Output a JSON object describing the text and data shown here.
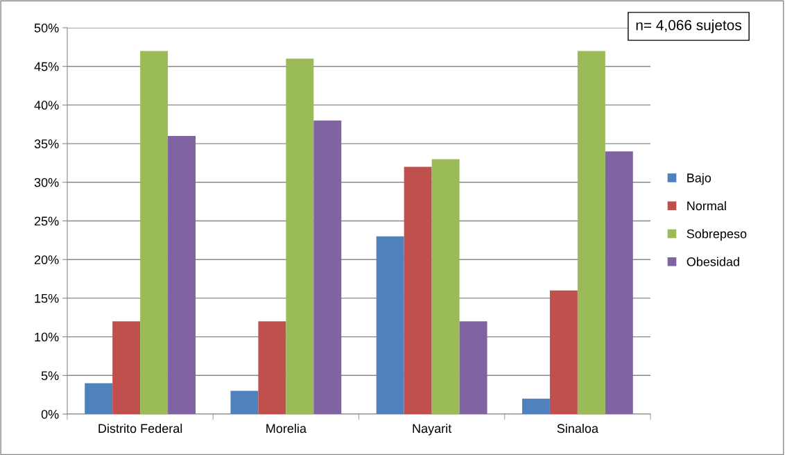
{
  "chart_data": {
    "type": "bar",
    "categories": [
      "Distrito Federal",
      "Morelia",
      "Nayarit",
      "Sinaloa"
    ],
    "series": [
      {
        "name": "Bajo",
        "color": "#4f81bd",
        "values": [
          4,
          3,
          23,
          2
        ]
      },
      {
        "name": "Normal",
        "color": "#c0504d",
        "values": [
          12,
          12,
          32,
          16
        ]
      },
      {
        "name": "Sobrepeso",
        "color": "#9bbb59",
        "values": [
          47,
          46,
          33,
          47
        ]
      },
      {
        "name": "Obesidad",
        "color": "#8064a2",
        "values": [
          36,
          38,
          12,
          34
        ]
      }
    ],
    "ylim": [
      0,
      50
    ],
    "yticks": [
      {
        "value": 0,
        "label": "0%"
      },
      {
        "value": 5,
        "label": "5%"
      },
      {
        "value": 10,
        "label": "10%"
      },
      {
        "value": 15,
        "label": "15%"
      },
      {
        "value": 20,
        "label": "20%"
      },
      {
        "value": 25,
        "label": "25%"
      },
      {
        "value": 30,
        "label": "30%"
      },
      {
        "value": 35,
        "label": "35%"
      },
      {
        "value": 40,
        "label": "40%"
      },
      {
        "value": 45,
        "label": "45%"
      },
      {
        "value": 50,
        "label": "50%"
      }
    ],
    "grid": "y",
    "legend": "right",
    "annotations": [
      "n= 4,066 sujetos"
    ]
  }
}
